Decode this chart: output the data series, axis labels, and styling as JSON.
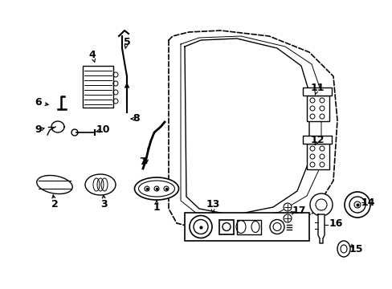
{
  "bg_color": "#ffffff",
  "line_color": "#000000",
  "fig_width": 4.89,
  "fig_height": 3.6,
  "dpi": 100,
  "font_size": 9
}
